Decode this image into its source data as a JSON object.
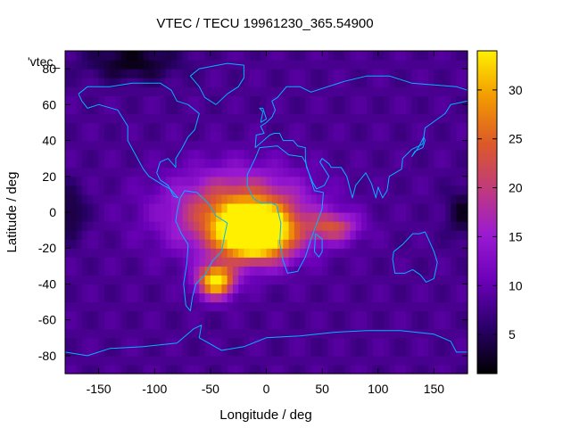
{
  "chart_data": {
    "type": "heatmap",
    "title": "VTEC / TECU 19961230_365.54900",
    "xlabel": "Longitude / deg",
    "ylabel": "Latitude / deg",
    "xlim": [
      -180,
      180
    ],
    "ylim": [
      -90,
      90
    ],
    "xticks": [
      -150,
      -100,
      -50,
      0,
      50,
      100,
      150
    ],
    "yticks": [
      -80,
      -60,
      -40,
      -20,
      0,
      20,
      40,
      60,
      80
    ],
    "colorbar": {
      "range": [
        1,
        34
      ],
      "ticks": [
        5,
        10,
        15,
        20,
        25,
        30
      ],
      "colors": [
        "#000000",
        "#2a0069",
        "#6a00b8",
        "#9a1ad2",
        "#c03a7c",
        "#dd5a28",
        "#f29a00",
        "#fff000"
      ]
    },
    "legend_entry": "'vtec_",
    "background_level": 8,
    "features": [
      {
        "name": "south atlantic maximum",
        "lon": -10,
        "lat": -12,
        "peak": 33,
        "spread_lon": 32,
        "spread_lat": 14
      },
      {
        "name": "south american southern lobe",
        "lon": -45,
        "lat": -38,
        "peak": 27,
        "spread_lon": 16,
        "spread_lat": 9
      },
      {
        "name": "broad equatorial band",
        "lon": -25,
        "lat": 0,
        "peak": 19,
        "spread_lon": 60,
        "spread_lat": 22
      },
      {
        "name": "indian ocean extension",
        "lon": 60,
        "lat": -8,
        "peak": 13,
        "spread_lon": 22,
        "spread_lat": 8
      },
      {
        "name": "north polar minimum",
        "lon": -120,
        "lat": 84,
        "peak": -6,
        "spread_lon": 40,
        "spread_lat": 10
      },
      {
        "name": "pacific minimum west",
        "lon": -175,
        "lat": 0,
        "peak": -5,
        "spread_lon": 14,
        "spread_lat": 14
      },
      {
        "name": "pacific minimum east",
        "lon": 175,
        "lat": 0,
        "peak": -5,
        "spread_lon": 14,
        "spread_lat": 14
      }
    ],
    "coastline_color": "#00b4ff"
  }
}
